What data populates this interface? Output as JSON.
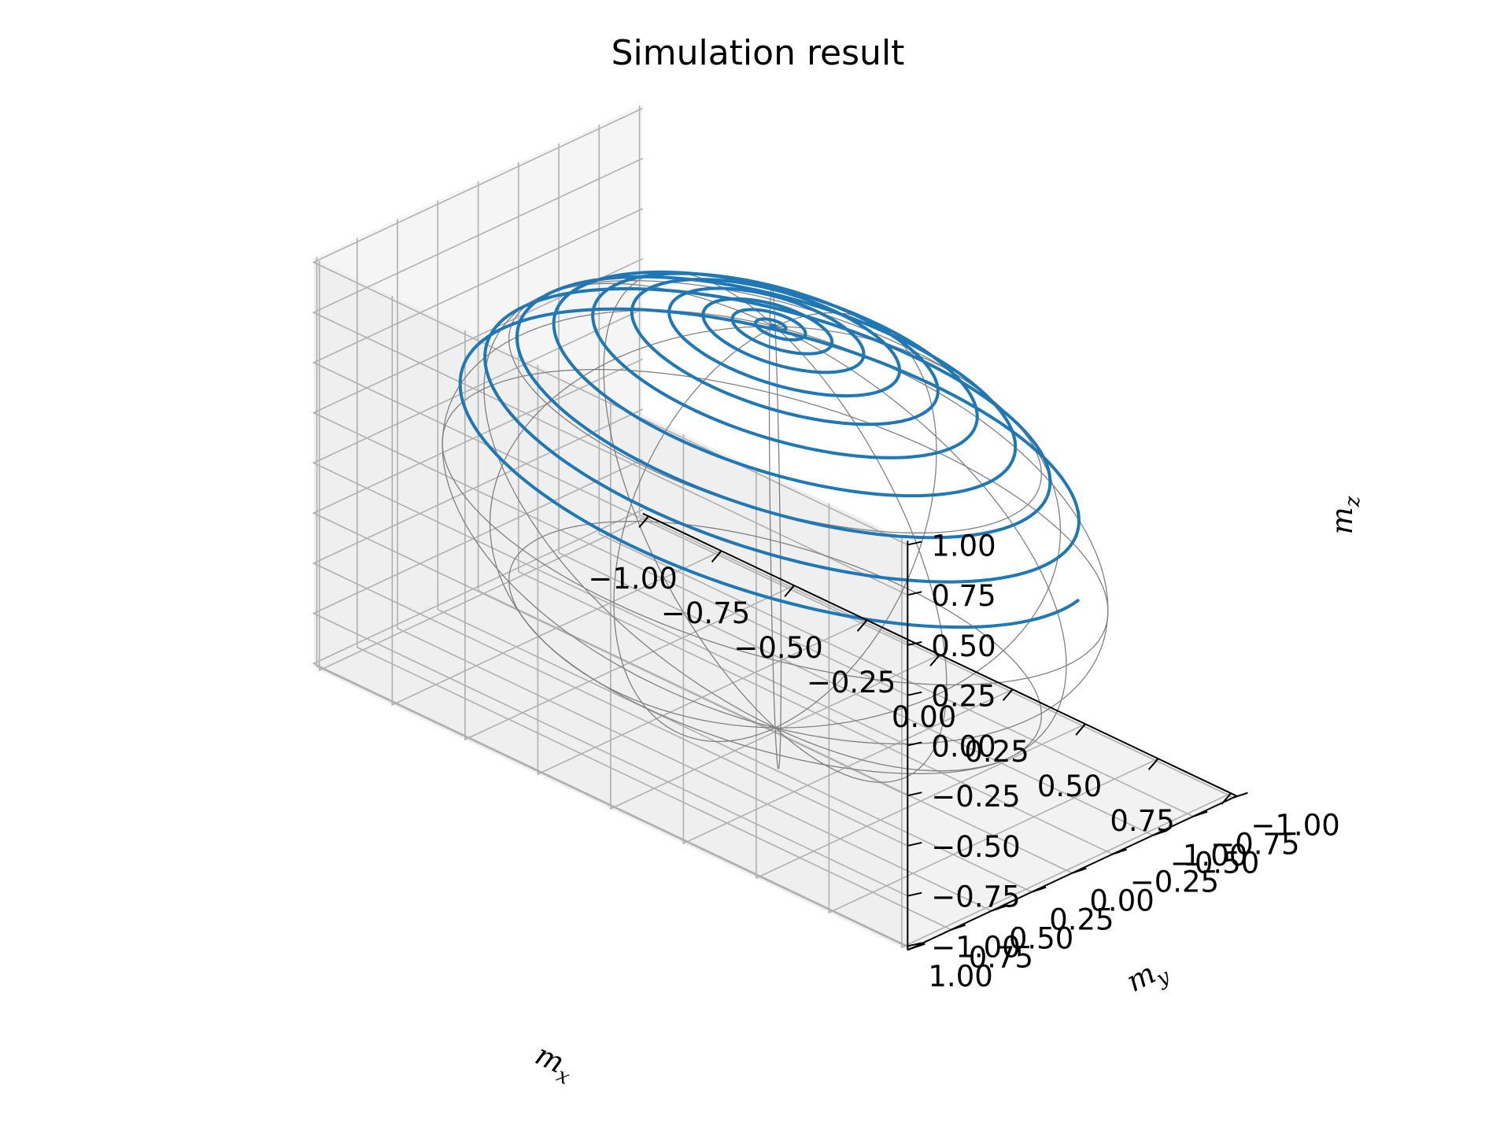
{
  "chart_data": {
    "type": "line3d",
    "title": "Simulation result",
    "xlabel": "m_x",
    "ylabel": "m_y",
    "zlabel": "m_z",
    "axis_labels": {
      "x": {
        "main": "m",
        "sub": "x"
      },
      "y": {
        "main": "m",
        "sub": "y"
      },
      "z": {
        "main": "m",
        "sub": "z"
      }
    },
    "xlim": [
      -1.0,
      1.0
    ],
    "ylim": [
      -1.0,
      1.0
    ],
    "zlim": [
      -1.0,
      1.0
    ],
    "ticks": [
      -1.0,
      -0.75,
      -0.5,
      -0.25,
      0.0,
      0.25,
      0.5,
      0.75,
      1.0
    ],
    "tick_labels": [
      "−1.00",
      "−0.75",
      "−0.50",
      "−0.25",
      "0.00",
      "0.25",
      "0.50",
      "0.75",
      "1.00"
    ],
    "grid": true,
    "view": {
      "elevation_deg": 30,
      "azimuth_deg": -60
    },
    "wireframe": {
      "shape": "unit sphere",
      "color": "#808080"
    },
    "series": [
      {
        "color": "#1f77b4",
        "curve": "spiral on unit sphere converging to the north pole",
        "polar_angle_start_deg": 76,
        "polar_angle_end_deg": 0,
        "turns": 11,
        "values": [
          {
            "t": 0.0,
            "mz": 0.24
          },
          {
            "t": 0.1,
            "mz": 0.35
          },
          {
            "t": 0.2,
            "mz": 0.47
          },
          {
            "t": 0.3,
            "mz": 0.58
          },
          {
            "t": 0.4,
            "mz": 0.69
          },
          {
            "t": 0.5,
            "mz": 0.79
          },
          {
            "t": 0.6,
            "mz": 0.87
          },
          {
            "t": 0.7,
            "mz": 0.93
          },
          {
            "t": 0.8,
            "mz": 0.97
          },
          {
            "t": 0.9,
            "mz": 0.99
          },
          {
            "t": 1.0,
            "mz": 1.0
          }
        ]
      }
    ]
  }
}
